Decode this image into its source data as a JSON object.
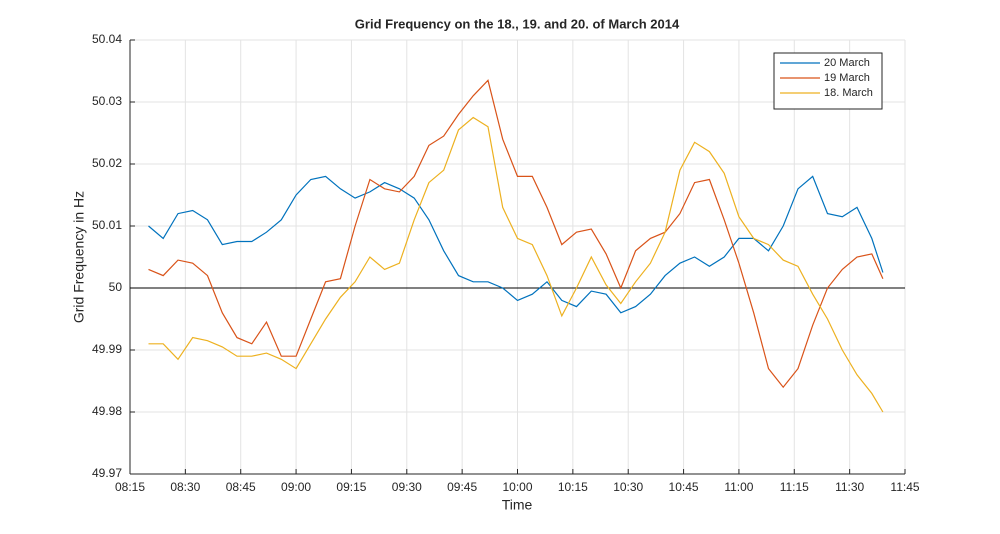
{
  "chart_data": {
    "type": "line",
    "title": "Grid Frequency on the 18., 19. and 20. of March 2014",
    "x_label": "Time",
    "y_label": "Grid Frequency in Hz",
    "x": [
      "08:20",
      "08:24",
      "08:28",
      "08:32",
      "08:36",
      "08:40",
      "08:44",
      "08:48",
      "08:52",
      "08:56",
      "09:00",
      "09:04",
      "09:08",
      "09:12",
      "09:16",
      "09:20",
      "09:24",
      "09:28",
      "09:32",
      "09:36",
      "09:40",
      "09:44",
      "09:48",
      "09:52",
      "09:56",
      "10:00",
      "10:04",
      "10:08",
      "10:12",
      "10:16",
      "10:20",
      "10:24",
      "10:28",
      "10:32",
      "10:36",
      "10:40",
      "10:44",
      "10:48",
      "10:52",
      "10:56",
      "11:00",
      "11:04",
      "11:08",
      "11:12",
      "11:16",
      "11:20",
      "11:24",
      "11:28",
      "11:32",
      "11:36",
      "11:39"
    ],
    "series": [
      {
        "name": "20 March",
        "color": "#0072bd",
        "values": [
          50.01,
          50.008,
          50.012,
          50.0125,
          50.011,
          50.007,
          50.0075,
          50.0075,
          50.009,
          50.011,
          50.015,
          50.0175,
          50.018,
          50.016,
          50.0145,
          50.0155,
          50.017,
          50.016,
          50.0145,
          50.011,
          50.006,
          50.002,
          50.001,
          50.001,
          50.0,
          49.998,
          49.999,
          50.001,
          49.998,
          49.997,
          49.9995,
          49.999,
          49.996,
          49.997,
          49.999,
          50.002,
          50.004,
          50.005,
          50.0035,
          50.005,
          50.008,
          50.008,
          50.006,
          50.01,
          50.016,
          50.018,
          50.012,
          50.0115,
          50.013,
          50.008,
          50.0025
        ]
      },
      {
        "name": "19 March",
        "color": "#d95319",
        "values": [
          50.003,
          50.002,
          50.0045,
          50.004,
          50.002,
          49.996,
          49.992,
          49.991,
          49.9945,
          49.989,
          49.989,
          49.995,
          50.001,
          50.0015,
          50.01,
          50.0175,
          50.016,
          50.0155,
          50.018,
          50.023,
          50.0245,
          50.028,
          50.031,
          50.0335,
          50.024,
          50.018,
          50.018,
          50.013,
          50.007,
          50.009,
          50.0095,
          50.0055,
          50.0,
          50.006,
          50.008,
          50.009,
          50.012,
          50.017,
          50.0175,
          50.011,
          50.004,
          49.996,
          49.987,
          49.984,
          49.987,
          49.994,
          50.0,
          50.003,
          50.005,
          50.0055,
          50.0015
        ]
      },
      {
        "name": "18. March",
        "color": "#edb120",
        "values": [
          49.991,
          49.991,
          49.9885,
          49.992,
          49.9915,
          49.9905,
          49.989,
          49.989,
          49.9895,
          49.9885,
          49.987,
          49.991,
          49.995,
          49.9985,
          50.001,
          50.005,
          50.003,
          50.004,
          50.011,
          50.017,
          50.019,
          50.0255,
          50.0275,
          50.026,
          50.013,
          50.008,
          50.007,
          50.002,
          49.9955,
          50.0,
          50.005,
          50.0005,
          49.9975,
          50.001,
          50.004,
          50.009,
          50.019,
          50.0235,
          50.022,
          50.0185,
          50.0115,
          50.008,
          50.007,
          50.0045,
          50.0035,
          49.999,
          49.995,
          49.99,
          49.986,
          49.983,
          49.98
        ]
      }
    ],
    "reference_line": 50,
    "xlim": [
      "08:15",
      "11:45"
    ],
    "xticks": [
      "08:15",
      "08:30",
      "08:45",
      "09:00",
      "09:15",
      "09:30",
      "09:45",
      "10:00",
      "10:15",
      "10:30",
      "10:45",
      "11:00",
      "11:15",
      "11:30",
      "11:45"
    ],
    "ylim": [
      49.97,
      50.04
    ],
    "yticks": [
      49.97,
      49.98,
      49.99,
      50,
      50.01,
      50.02,
      50.03,
      50.04
    ],
    "grid": true,
    "legend": "top-right"
  }
}
